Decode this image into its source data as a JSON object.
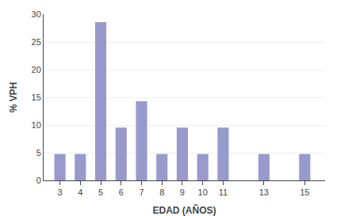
{
  "chart_data": {
    "type": "bar",
    "x": [
      3,
      4,
      5,
      6,
      7,
      8,
      9,
      10,
      11,
      13,
      15
    ],
    "values": [
      4.76,
      4.76,
      28.57,
      9.52,
      14.29,
      4.76,
      9.52,
      4.76,
      9.52,
      4.76,
      4.76
    ],
    "color": "#9999cc",
    "xlabel": "EDAD (AÑOS)",
    "ylabel": "% VPH",
    "xlim": [
      2.2,
      16.0
    ],
    "xticks": [
      3,
      4,
      5,
      6,
      7,
      8,
      9,
      10,
      11,
      13,
      15
    ],
    "ylim": [
      0,
      30
    ],
    "yticks": [
      0,
      5,
      10,
      15,
      20,
      25,
      30
    ],
    "grid": true
  }
}
